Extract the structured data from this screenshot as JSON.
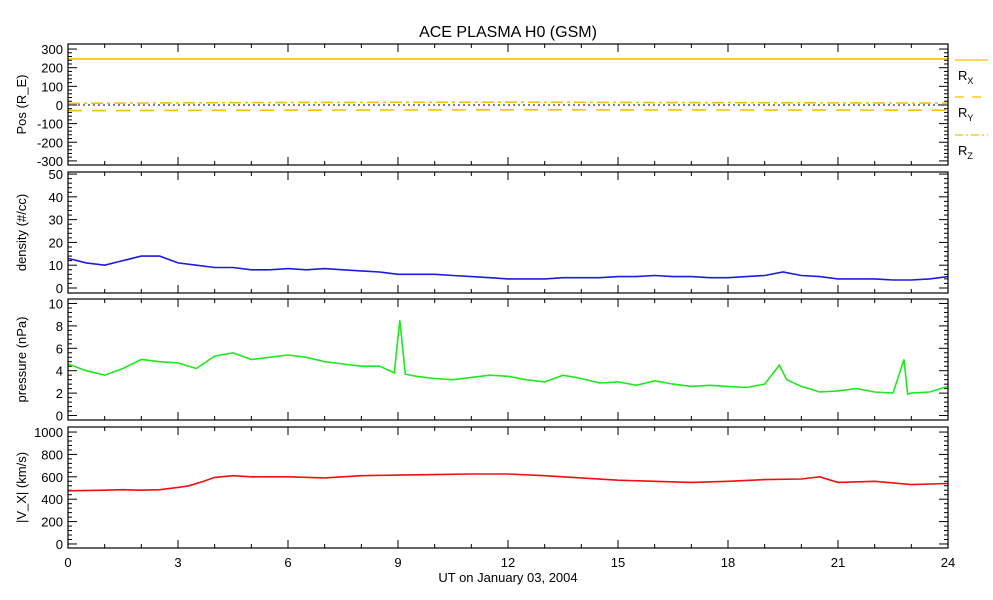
{
  "chart_data": {
    "type": "line",
    "title": "ACE PLASMA H0 (GSM)",
    "xlabel": "UT on January 03, 2004",
    "xlim": [
      0,
      24
    ],
    "xticks": [
      "0",
      "3",
      "6",
      "9",
      "12",
      "15",
      "18",
      "21",
      "24"
    ],
    "panels": [
      {
        "ylabel": "Pos (R_E)",
        "ylabel_main": "Pos (R",
        "ylabel_sub": "E",
        "ylabel_end": ")",
        "ylim": [
          -322,
          327
        ],
        "yticks": [
          300,
          200,
          100,
          0,
          -100,
          -200,
          -300
        ],
        "ytick_labels": [
          "300",
          "200",
          "100",
          "0",
          "-100",
          "-200",
          "-300"
        ],
        "zero_line": true,
        "series": [
          {
            "name": "R_X",
            "label_main": "R",
            "label_sub": "X",
            "color": "#f5c000",
            "dash": "",
            "x": [
              0,
              24
            ],
            "y": [
              247,
              247
            ]
          },
          {
            "name": "R_Y",
            "label_main": "R",
            "label_sub": "Y",
            "color": "#f5c000",
            "dash": "14,10",
            "x": [
              0,
              6,
              12,
              18,
              24
            ],
            "y": [
              -30,
              -28,
              -26,
              -27,
              -28
            ]
          },
          {
            "name": "R_Z",
            "label_main": "R",
            "label_sub": "Z",
            "color": "#f5c000",
            "dash": "12,4,3,4",
            "x": [
              0,
              6,
              12,
              18,
              24
            ],
            "y": [
              9,
              13,
              15,
              12,
              10
            ]
          }
        ]
      },
      {
        "ylabel": "density (#/cc)",
        "ylim": [
          -2.2,
          50.9
        ],
        "yticks": [
          50,
          40,
          30,
          20,
          10,
          0
        ],
        "ytick_labels": [
          "50",
          "40",
          "30",
          "20",
          "10",
          "0"
        ],
        "series": [
          {
            "name": "density",
            "color": "#1c1cdc",
            "x": [
              0,
              0.5,
              1,
              1.5,
              2,
              2.5,
              3,
              3.5,
              4,
              4.5,
              5,
              5.5,
              6,
              6.5,
              7,
              7.5,
              8,
              8.5,
              9,
              9.5,
              10,
              10.5,
              11,
              11.5,
              12,
              12.5,
              13,
              13.5,
              14,
              14.5,
              15,
              15.5,
              16,
              16.5,
              17,
              17.5,
              18,
              18.5,
              19,
              19.5,
              20,
              20.5,
              21,
              21.5,
              22,
              22.5,
              23,
              23.5,
              24
            ],
            "y": [
              13,
              11,
              10,
              12,
              14,
              14,
              11,
              10,
              9,
              9,
              8,
              8,
              8.5,
              8,
              8.5,
              8,
              7.5,
              7,
              6,
              6,
              6,
              5.5,
              5,
              4.5,
              4,
              4,
              4,
              4.5,
              4.5,
              4.5,
              5,
              5,
              5.5,
              5,
              5,
              4.5,
              4.5,
              5,
              5.5,
              7,
              5.5,
              5,
              4,
              4,
              4,
              3.5,
              3.5,
              4,
              5
            ]
          }
        ]
      },
      {
        "ylabel": "pressure (nPa)",
        "ylim": [
          -0.4,
          10.4
        ],
        "yticks": [
          10,
          8,
          6,
          4,
          2,
          0
        ],
        "ytick_labels": [
          "10",
          "8",
          "6",
          "4",
          "2",
          "0"
        ],
        "series": [
          {
            "name": "pressure",
            "color": "#1ee81e",
            "x": [
              0,
              0.5,
              1,
              1.5,
              2,
              2.5,
              3,
              3.5,
              4,
              4.5,
              5,
              5.5,
              6,
              6.5,
              7,
              7.5,
              8,
              8.5,
              8.9,
              9.05,
              9.2,
              9.5,
              10,
              10.5,
              11,
              11.5,
              12,
              12.5,
              13,
              13.5,
              14,
              14.5,
              15,
              15.5,
              16,
              16.5,
              17,
              17.5,
              18,
              18.5,
              19,
              19.4,
              19.6,
              20,
              20.5,
              21,
              21.5,
              22,
              22.5,
              22.8,
              22.9,
              23,
              23.5,
              24
            ],
            "y": [
              4.6,
              4.0,
              3.6,
              4.2,
              5.0,
              4.8,
              4.7,
              4.2,
              5.3,
              5.6,
              5.0,
              5.2,
              5.4,
              5.2,
              4.8,
              4.6,
              4.4,
              4.4,
              3.8,
              8.5,
              3.7,
              3.5,
              3.3,
              3.2,
              3.4,
              3.6,
              3.5,
              3.2,
              3.0,
              3.6,
              3.3,
              2.9,
              3.0,
              2.7,
              3.1,
              2.8,
              2.6,
              2.7,
              2.6,
              2.5,
              2.8,
              4.5,
              3.2,
              2.6,
              2.1,
              2.2,
              2.4,
              2.1,
              2.0,
              5.0,
              1.9,
              2.0,
              2.1,
              2.6
            ]
          }
        ]
      },
      {
        "ylabel": "|V_X| (km/s)",
        "ylabel_main": "|V",
        "ylabel_sub": "X",
        "ylabel_end": "| (km/s)",
        "ylim": [
          -36,
          1045
        ],
        "yticks": [
          1000,
          800,
          600,
          400,
          200,
          0
        ],
        "ytick_labels": [
          "1000",
          "800",
          "600",
          "400",
          "200",
          "0"
        ],
        "series": [
          {
            "name": "|V_X|",
            "color": "#f01010",
            "x": [
              0,
              1,
              1.5,
              2,
              2.5,
              3,
              3.3,
              3.7,
              4,
              4.5,
              5,
              6,
              7,
              8,
              9,
              10,
              11,
              12,
              13,
              14,
              15,
              16,
              17,
              18,
              19,
              20,
              20.5,
              21,
              22,
              23,
              24
            ],
            "y": [
              475,
              480,
              485,
              480,
              485,
              505,
              520,
              560,
              595,
              610,
              600,
              600,
              590,
              610,
              615,
              620,
              625,
              625,
              610,
              590,
              570,
              560,
              550,
              560,
              575,
              580,
              600,
              550,
              560,
              530,
              540
            ]
          }
        ]
      }
    ]
  }
}
